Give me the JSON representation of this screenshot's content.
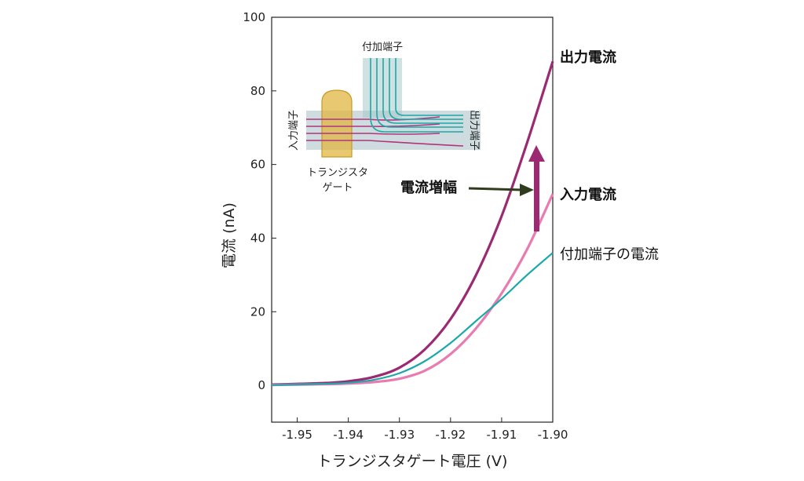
{
  "chart_data": {
    "type": "line",
    "xlabel": "トランジスタゲート電圧 (V)",
    "ylabel": "電流 (nA)",
    "xlim": [
      -1.955,
      -1.9
    ],
    "ylim": [
      -10,
      100
    ],
    "xticks": [
      "-1.95",
      "-1.94",
      "-1.93",
      "-1.92",
      "-1.91",
      "-1.90"
    ],
    "yticks": [
      "0",
      "20",
      "40",
      "60",
      "80",
      "100"
    ],
    "grid": false,
    "series": [
      {
        "name": "出力電流",
        "color": "#9b2a73",
        "x": [
          -1.955,
          -1.95,
          -1.945,
          -1.94,
          -1.935,
          -1.93,
          -1.925,
          -1.92,
          -1.915,
          -1.91,
          -1.905,
          -1.9
        ],
        "y": [
          0.2,
          0.4,
          0.6,
          1.1,
          2.3,
          4.8,
          9.8,
          18.0,
          30.0,
          46.0,
          66.0,
          88.0
        ]
      },
      {
        "name": "入力電流",
        "color": "#e87cb0",
        "x": [
          -1.955,
          -1.95,
          -1.945,
          -1.94,
          -1.935,
          -1.93,
          -1.925,
          -1.92,
          -1.915,
          -1.91,
          -1.905,
          -1.9
        ],
        "y": [
          0.1,
          0.2,
          0.3,
          0.5,
          0.9,
          1.8,
          4.0,
          8.5,
          15.5,
          25.0,
          37.0,
          52.0
        ]
      },
      {
        "name": "付加端子の電流",
        "color": "#1aa8a8",
        "x": [
          -1.955,
          -1.95,
          -1.945,
          -1.94,
          -1.935,
          -1.93,
          -1.925,
          -1.92,
          -1.915,
          -1.91,
          -1.905,
          -1.9
        ],
        "y": [
          0.1,
          0.2,
          0.4,
          0.7,
          1.5,
          3.3,
          6.6,
          11.5,
          17.5,
          23.5,
          30.0,
          36.0
        ]
      }
    ],
    "annotations": {
      "amplification": "電流増幅"
    }
  },
  "inset": {
    "top_terminal": "付加端子",
    "left_terminal": "入力端子",
    "right_terminal": "出力端子",
    "gate_line1": "トランジスタ",
    "gate_line2": "ゲート"
  }
}
